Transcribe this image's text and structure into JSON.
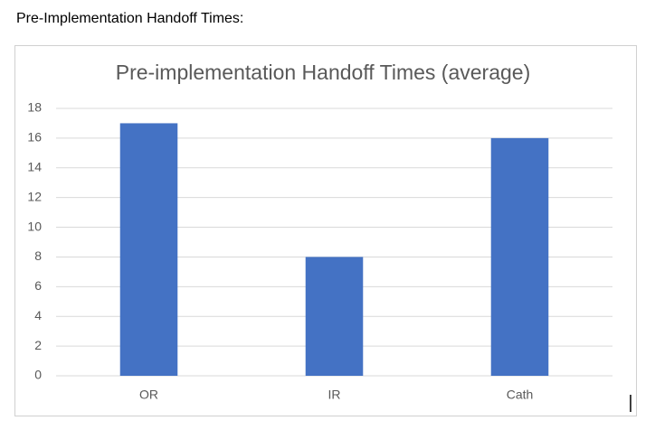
{
  "heading": "Pre-Implementation Handoff Times:",
  "chart_data": {
    "type": "bar",
    "title": "Pre-implementation Handoff Times (average)",
    "categories": [
      "OR",
      "IR",
      "Cath"
    ],
    "values": [
      17,
      8,
      16
    ],
    "color": "#4472c4",
    "ylim": [
      0,
      18
    ],
    "yticks": [
      0,
      2,
      4,
      6,
      8,
      10,
      12,
      14,
      16,
      18
    ],
    "grid": true
  }
}
